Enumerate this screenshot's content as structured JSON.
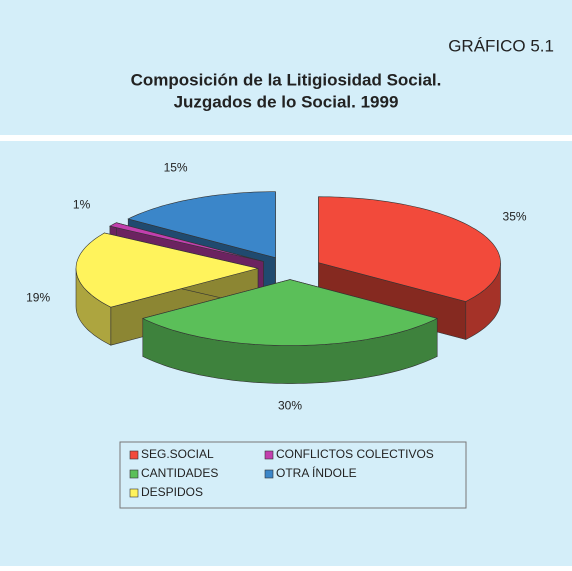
{
  "chart_data": {
    "type": "pie3d",
    "figure_label": "GRÁFICO 5.1",
    "title": [
      "Composición de la Litigiosidad Social.",
      "Juzgados de lo Social. 1999"
    ],
    "categories": [
      "SEG.SOCIAL",
      "CANTIDADES",
      "DESPIDOS",
      "CONFLICTOS COLECTIVOS",
      "OTRA ÍNDOLE"
    ],
    "values": [
      35,
      30,
      19,
      1,
      15
    ],
    "value_labels": [
      "35%",
      "30%",
      "19%",
      "1%",
      "15%"
    ],
    "colors": [
      "#f24a3b",
      "#5bbf59",
      "#fff35c",
      "#c23fae",
      "#3b86c9"
    ],
    "exploded": true,
    "legend": "bottom"
  }
}
